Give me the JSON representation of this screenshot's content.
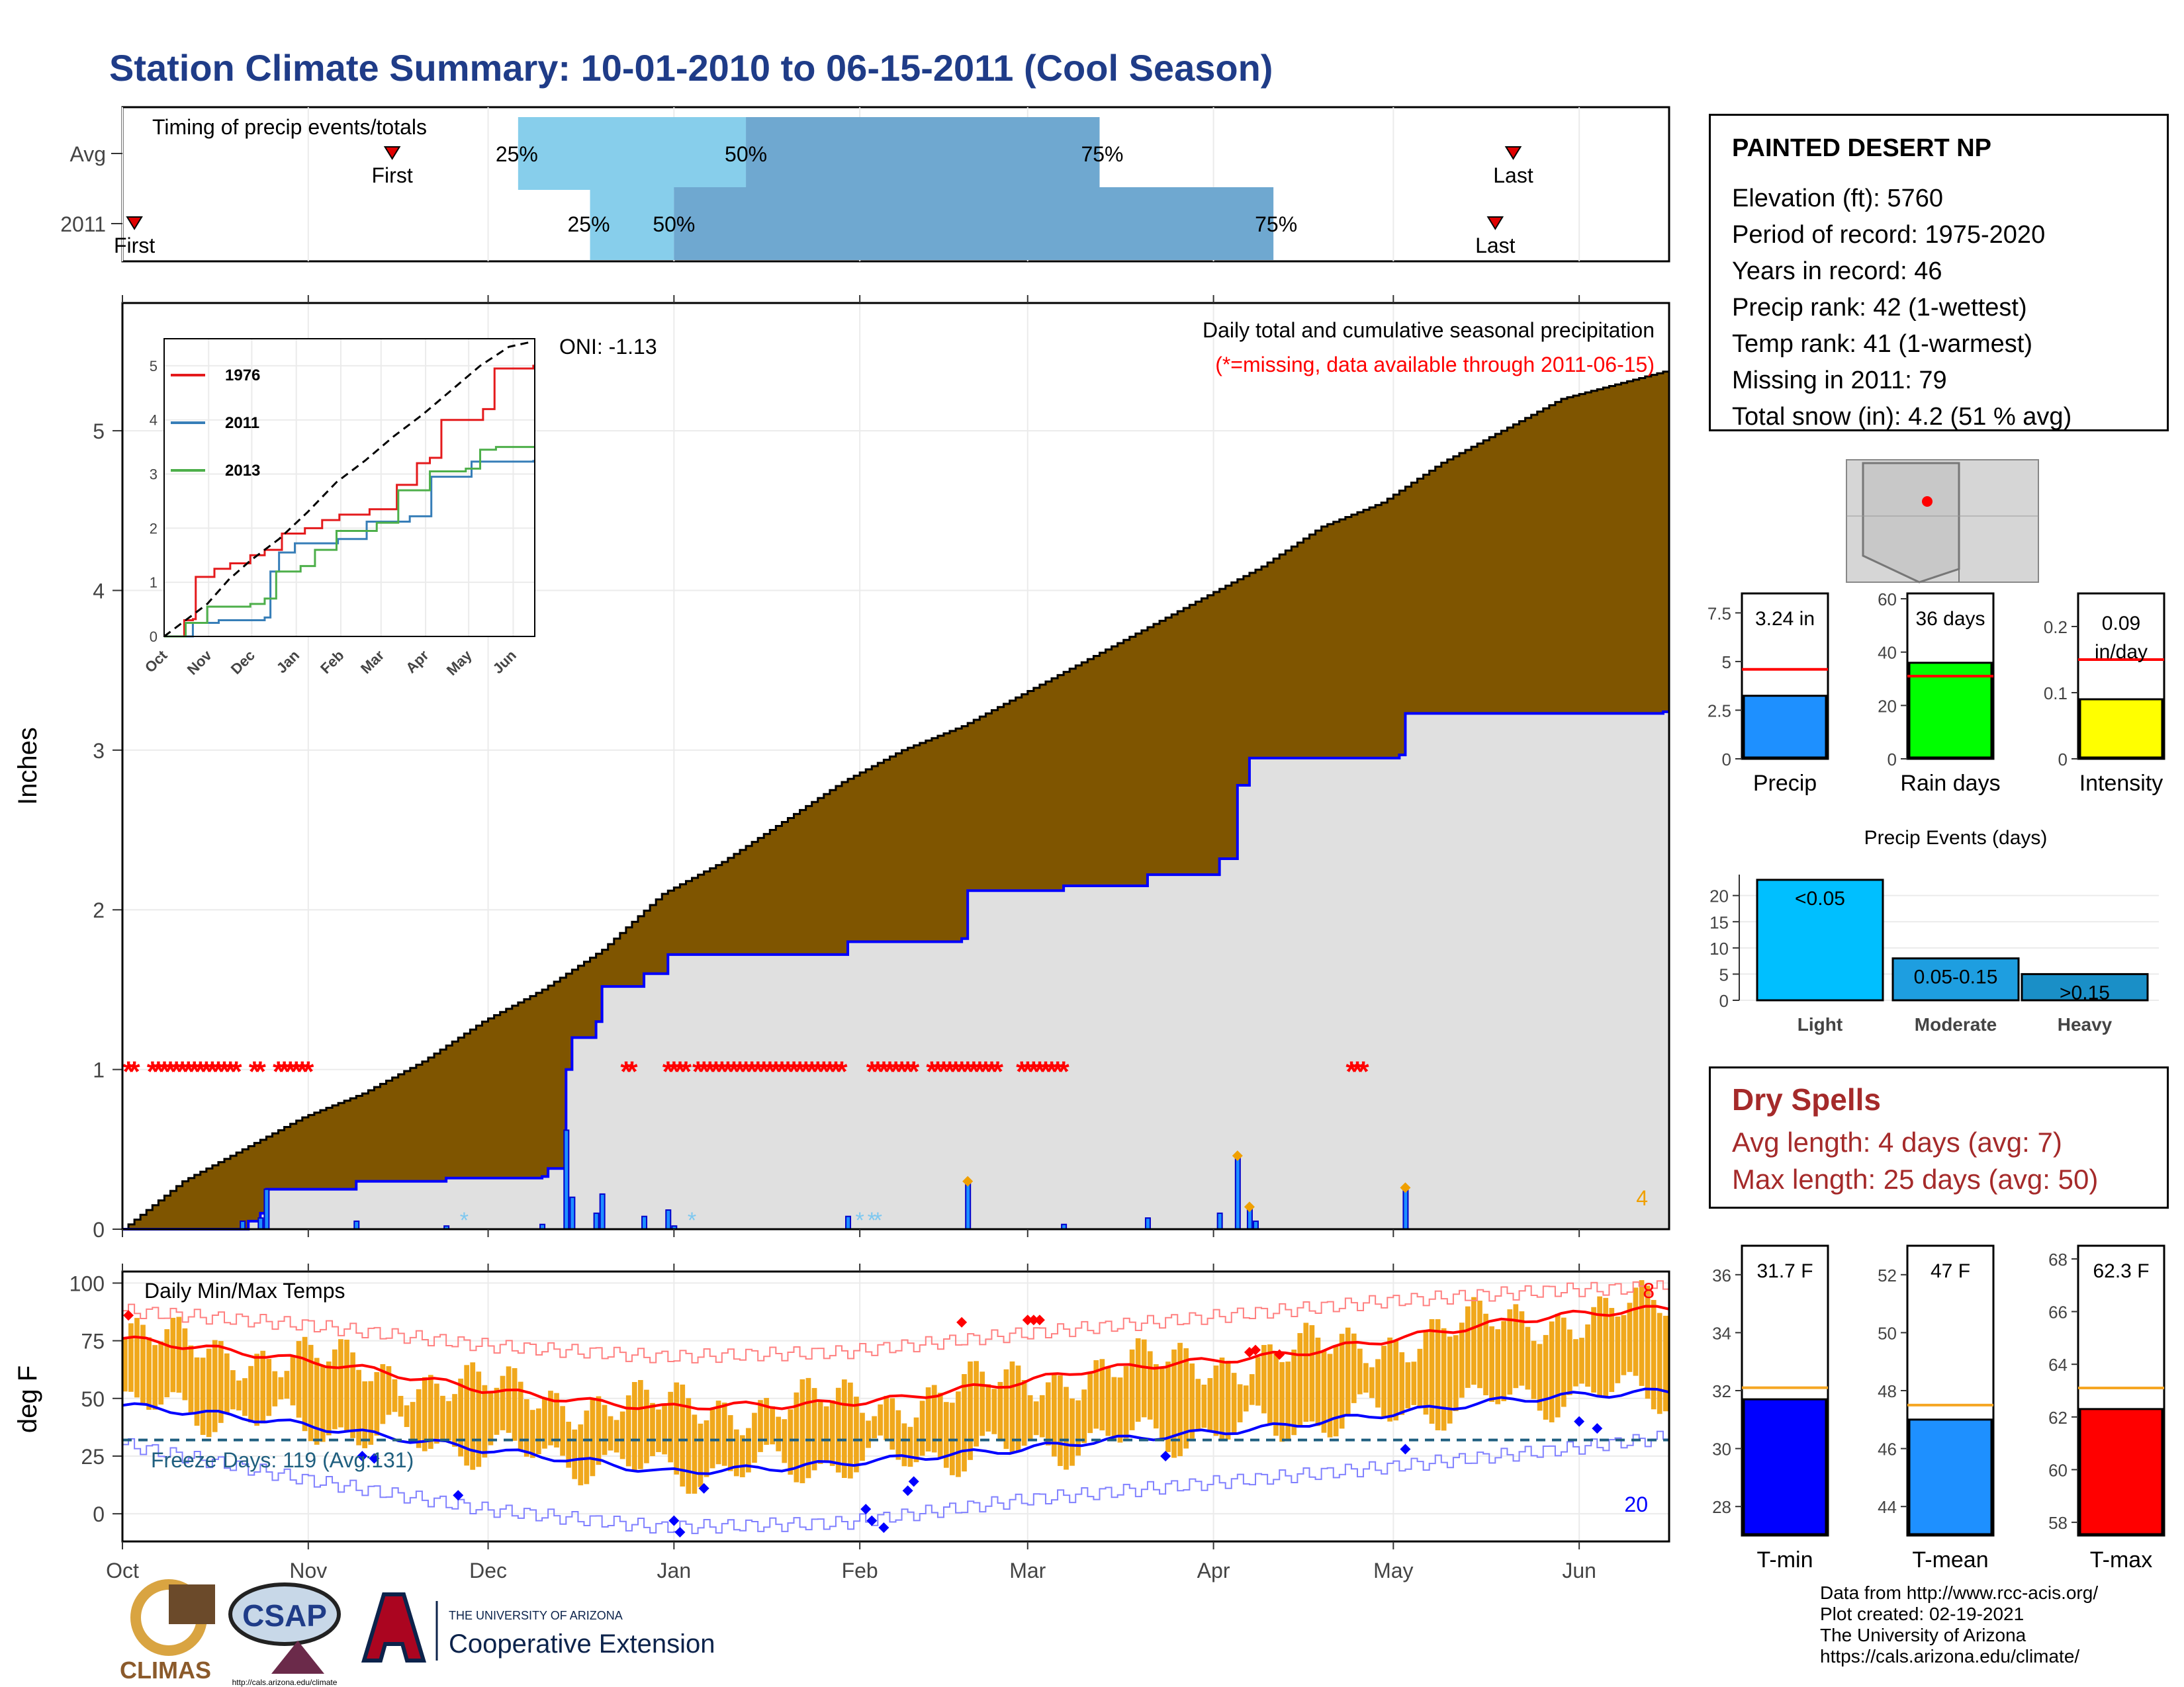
{
  "title": "Station Climate Summary: 10-01-2010 to 06-15-2011 (Cool Season)",
  "station": {
    "name": "PAINTED DESERT NP",
    "elevation": "Elevation (ft): 5760",
    "period": "Period of record: 1975-2020",
    "years": "Years in record: 46",
    "precip_rank": "Precip rank: 42 (1-wettest)",
    "temp_rank": "Temp rank: 41 (1-warmest)",
    "missing": "Missing in 2011: 79",
    "snow": "Total snow (in): 4.2 (51 % avg)"
  },
  "dry_spells": {
    "title": "Dry Spells",
    "avg": "Avg length: 4 days (avg: 7)",
    "max": "Max length: 25 days (avg: 50)"
  },
  "footer": {
    "line1": "Data from http://www.rcc-acis.org/",
    "line2": "Plot created: 02-19-2021",
    "line3": "The University of Arizona",
    "line4": "https://cals.arizona.edu/climate/"
  },
  "logos": {
    "climas": "CLIMAS",
    "csap": "CSAP",
    "csap_url": "http://cals.arizona.edu/climate",
    "ua_small": "THE UNIVERSITY OF ARIZONA",
    "ua_ext": "Cooperative Extension"
  },
  "months": [
    "Oct",
    "Nov",
    "Dec",
    "Jan",
    "Feb",
    "Mar",
    "Apr",
    "May",
    "Jun"
  ],
  "chart_data": [
    {
      "type": "bar",
      "name": "timing",
      "title": "Timing of precip events/totals",
      "rows": [
        {
          "label": "Avg",
          "first_day": 45,
          "last_day": 232,
          "p25_day": 66,
          "p50_day": 104,
          "p75_day": 163,
          "labels": [
            "First",
            "25%",
            "50%",
            "75%",
            "Last"
          ]
        },
        {
          "label": "2011",
          "first_day": 2,
          "last_day": 229,
          "p25_day": 78,
          "p50_day": 92,
          "p75_day": 192,
          "labels": [
            "First",
            "25%",
            "50%",
            "75%",
            "Last"
          ]
        }
      ]
    },
    {
      "type": "area",
      "name": "cumulative_precip",
      "title": "Daily total and cumulative seasonal precipitation",
      "subtitle": "(*=missing, data available through 2011-06-15)",
      "oni": "ONI: -1.13",
      "ylabel": "Inches",
      "ylim": [
        0,
        5.8
      ],
      "yticks": [
        0,
        1,
        2,
        3,
        4,
        5
      ],
      "avg_cum": [
        [
          0,
          0
        ],
        [
          10,
          0.3
        ],
        [
          20,
          0.5
        ],
        [
          30,
          0.7
        ],
        [
          40,
          0.85
        ],
        [
          50,
          1.05
        ],
        [
          60,
          1.3
        ],
        [
          70,
          1.5
        ],
        [
          80,
          1.75
        ],
        [
          90,
          2.1
        ],
        [
          100,
          2.3
        ],
        [
          110,
          2.55
        ],
        [
          120,
          2.8
        ],
        [
          130,
          3.0
        ],
        [
          140,
          3.15
        ],
        [
          150,
          3.35
        ],
        [
          160,
          3.55
        ],
        [
          170,
          3.75
        ],
        [
          180,
          3.95
        ],
        [
          190,
          4.15
        ],
        [
          200,
          4.4
        ],
        [
          210,
          4.55
        ],
        [
          220,
          4.8
        ],
        [
          230,
          5.0
        ],
        [
          240,
          5.2
        ],
        [
          250,
          5.3
        ],
        [
          257,
          5.37
        ]
      ],
      "obs_cum": [
        [
          0,
          0
        ],
        [
          20,
          0
        ],
        [
          21,
          0.05
        ],
        [
          23,
          0.1
        ],
        [
          24,
          0.25
        ],
        [
          38,
          0.25
        ],
        [
          39,
          0.3
        ],
        [
          54,
          0.32
        ],
        [
          70,
          0.33
        ],
        [
          71,
          0.38
        ],
        [
          74,
          1.0
        ],
        [
          75,
          1.2
        ],
        [
          79,
          1.3
        ],
        [
          80,
          1.52
        ],
        [
          87,
          1.6
        ],
        [
          91,
          1.72
        ],
        [
          110,
          1.72
        ],
        [
          121,
          1.8
        ],
        [
          140,
          1.82
        ],
        [
          141,
          2.12
        ],
        [
          157,
          2.15
        ],
        [
          171,
          2.22
        ],
        [
          183,
          2.32
        ],
        [
          186,
          2.78
        ],
        [
          188,
          2.95
        ],
        [
          197,
          2.95
        ],
        [
          213,
          2.97
        ],
        [
          214,
          3.23
        ],
        [
          257,
          3.24
        ]
      ],
      "daily": [
        [
          20,
          0.05
        ],
        [
          23,
          0.07
        ],
        [
          24,
          0.25
        ],
        [
          39,
          0.05
        ],
        [
          54,
          0.02
        ],
        [
          70,
          0.03
        ],
        [
          74,
          0.62
        ],
        [
          75,
          0.2
        ],
        [
          79,
          0.1
        ],
        [
          80,
          0.22
        ],
        [
          87,
          0.08
        ],
        [
          91,
          0.12
        ],
        [
          92,
          0.02
        ],
        [
          121,
          0.08
        ],
        [
          141,
          0.3
        ],
        [
          157,
          0.03
        ],
        [
          171,
          0.07
        ],
        [
          183,
          0.1
        ],
        [
          186,
          0.46
        ],
        [
          188,
          0.14
        ],
        [
          189,
          0.05
        ],
        [
          214,
          0.26
        ]
      ],
      "missing_days": [
        1,
        2,
        5,
        6,
        7,
        8,
        9,
        10,
        11,
        12,
        13,
        14,
        15,
        16,
        17,
        18,
        19,
        22,
        23,
        26,
        27,
        28,
        29,
        30,
        31,
        84,
        85,
        91,
        92,
        93,
        94,
        96,
        97,
        98,
        99,
        100,
        101,
        102,
        103,
        104,
        105,
        106,
        107,
        108,
        109,
        110,
        111,
        112,
        113,
        114,
        115,
        116,
        117,
        118,
        119,
        120,
        125,
        126,
        127,
        128,
        129,
        130,
        131,
        132,
        135,
        136,
        137,
        138,
        139,
        140,
        141,
        142,
        143,
        144,
        145,
        146,
        150,
        151,
        152,
        153,
        154,
        155,
        156,
        157,
        205,
        206,
        207
      ],
      "count_label": "4"
    },
    {
      "type": "line",
      "name": "inset_cumulative",
      "ylim": [
        0,
        5.5
      ],
      "yticks": [
        0,
        1,
        2,
        3,
        4,
        5
      ],
      "series": [
        {
          "name": "1976",
          "color": "#e41a1c",
          "values": [
            [
              14,
              0
            ],
            [
              14,
              0.3
            ],
            [
              20,
              0.32
            ],
            [
              22,
              1.1
            ],
            [
              35,
              1.25
            ],
            [
              46,
              1.35
            ],
            [
              60,
              1.5
            ],
            [
              70,
              1.6
            ],
            [
              82,
              1.9
            ],
            [
              98,
              2.0
            ],
            [
              110,
              2.15
            ],
            [
              122,
              2.25
            ],
            [
              143,
              2.35
            ],
            [
              158,
              2.35
            ],
            [
              162,
              2.8
            ],
            [
              176,
              3.2
            ],
            [
              185,
              3.3
            ],
            [
              193,
              4.0
            ],
            [
              205,
              4.0
            ],
            [
              210,
              4.0
            ],
            [
              222,
              4.2
            ],
            [
              230,
              4.95
            ],
            [
              257,
              5.0
            ]
          ]
        },
        {
          "name": "2011",
          "color": "#377eb8",
          "values": [
            [
              0,
              0
            ],
            [
              20,
              0.25
            ],
            [
              38,
              0.3
            ],
            [
              70,
              0.35
            ],
            [
              74,
              1.2
            ],
            [
              80,
              1.55
            ],
            [
              91,
              1.72
            ],
            [
              121,
              1.8
            ],
            [
              141,
              2.12
            ],
            [
              171,
              2.22
            ],
            [
              186,
              2.95
            ],
            [
              214,
              3.23
            ],
            [
              257,
              3.24
            ]
          ]
        },
        {
          "name": "2013",
          "color": "#4daf4a",
          "values": [
            [
              0,
              0
            ],
            [
              13,
              0
            ],
            [
              15,
              0.25
            ],
            [
              30,
              0.55
            ],
            [
              60,
              0.6
            ],
            [
              70,
              0.7
            ],
            [
              78,
              1.2
            ],
            [
              95,
              1.3
            ],
            [
              105,
              1.6
            ],
            [
              120,
              1.95
            ],
            [
              148,
              2.1
            ],
            [
              163,
              2.7
            ],
            [
              185,
              3.05
            ],
            [
              200,
              3.05
            ],
            [
              210,
              3.1
            ],
            [
              220,
              3.45
            ],
            [
              231,
              3.5
            ],
            [
              257,
              3.5
            ]
          ]
        },
        {
          "name": "",
          "color": "#000000",
          "values": [
            [
              0,
              0
            ],
            [
              15,
              0.3
            ],
            [
              30,
              0.6
            ],
            [
              45,
              1.05
            ],
            [
              60,
              1.4
            ],
            [
              80,
              1.8
            ],
            [
              100,
              2.3
            ],
            [
              120,
              2.85
            ],
            [
              140,
              3.25
            ],
            [
              160,
              3.7
            ],
            [
              180,
              4.1
            ],
            [
              200,
              4.55
            ],
            [
              220,
              5.0
            ],
            [
              240,
              5.35
            ],
            [
              257,
              5.45
            ]
          ]
        }
      ]
    },
    {
      "type": "bar",
      "name": "temps",
      "title": "Daily Min/Max Temps",
      "ylabel": "deg F",
      "ylim": [
        -12,
        105
      ],
      "yticks": [
        0,
        25,
        50,
        75,
        100
      ],
      "freeze_line": 32,
      "freeze_label": "Freeze Days: 119 (Avg:131)",
      "hot_count_label": "8",
      "cold_count_label": "20",
      "avg_max": [
        [
          0,
          76
        ],
        [
          20,
          70
        ],
        [
          40,
          63
        ],
        [
          60,
          54
        ],
        [
          80,
          48
        ],
        [
          90,
          46
        ],
        [
          100,
          47
        ],
        [
          110,
          47
        ],
        [
          120,
          48
        ],
        [
          130,
          50
        ],
        [
          140,
          54
        ],
        [
          150,
          57
        ],
        [
          160,
          62
        ],
        [
          170,
          64
        ],
        [
          180,
          66
        ],
        [
          190,
          68
        ],
        [
          200,
          71
        ],
        [
          210,
          75
        ],
        [
          220,
          79
        ],
        [
          230,
          83
        ],
        [
          240,
          86
        ],
        [
          257,
          89
        ]
      ],
      "avg_min": [
        [
          0,
          47
        ],
        [
          20,
          42
        ],
        [
          40,
          35
        ],
        [
          60,
          28
        ],
        [
          80,
          22
        ],
        [
          90,
          18
        ],
        [
          100,
          19
        ],
        [
          110,
          20
        ],
        [
          120,
          22
        ],
        [
          130,
          24
        ],
        [
          140,
          26
        ],
        [
          150,
          28
        ],
        [
          160,
          31
        ],
        [
          170,
          33
        ],
        [
          180,
          35
        ],
        [
          190,
          37
        ],
        [
          200,
          40
        ],
        [
          210,
          43
        ],
        [
          220,
          46
        ],
        [
          230,
          49
        ],
        [
          240,
          51
        ],
        [
          257,
          53
        ]
      ],
      "rec_max": [
        [
          0,
          88
        ],
        [
          30,
          82
        ],
        [
          60,
          73
        ],
        [
          90,
          68
        ],
        [
          120,
          70
        ],
        [
          150,
          78
        ],
        [
          180,
          85
        ],
        [
          210,
          92
        ],
        [
          240,
          97
        ],
        [
          257,
          98
        ]
      ],
      "rec_min": [
        [
          0,
          30
        ],
        [
          30,
          15
        ],
        [
          60,
          2
        ],
        [
          90,
          -6
        ],
        [
          120,
          -4
        ],
        [
          150,
          6
        ],
        [
          180,
          13
        ],
        [
          210,
          20
        ],
        [
          240,
          28
        ],
        [
          257,
          33
        ]
      ]
    },
    {
      "type": "bar",
      "name": "precip_stats",
      "categories": [
        "Precip",
        "Rain days",
        "Intensity"
      ],
      "values": [
        3.24,
        36,
        0.09
      ],
      "averages": [
        4.6,
        31,
        0.15
      ],
      "value_labels": [
        "3.24 in",
        "36 days",
        "0.09 in/day"
      ],
      "ylims": [
        [
          0,
          8.5
        ],
        [
          0,
          62
        ],
        [
          0,
          0.25
        ]
      ],
      "yticks": [
        [
          0,
          2.5,
          5,
          7.5
        ],
        [
          0,
          20,
          40,
          60
        ],
        [
          0,
          0.1,
          0.2
        ]
      ],
      "colors": [
        "#1e90ff",
        "#00ff00",
        "#ffff00"
      ]
    },
    {
      "type": "bar",
      "name": "precip_events",
      "title": "Precip Events (days)",
      "categories": [
        "Light",
        "Moderate",
        "Heavy"
      ],
      "values": [
        23,
        8,
        5
      ],
      "value_labels": [
        "<0.05",
        "0.05-0.15",
        ">0.15"
      ],
      "ylim": [
        0,
        24
      ],
      "yticks": [
        0,
        5,
        10,
        15,
        20
      ],
      "colors": [
        "#00bfff",
        "#1e9ee0",
        "#1a8fc7"
      ]
    },
    {
      "type": "bar",
      "name": "temp_stats",
      "categories": [
        "T-min",
        "T-mean",
        "T-max"
      ],
      "values": [
        31.7,
        47,
        62.3
      ],
      "averages": [
        32.1,
        47.5,
        63.1
      ],
      "value_labels": [
        "31.7 F",
        "47 F",
        "62.3 F"
      ],
      "ylims": [
        [
          27,
          37
        ],
        [
          43,
          53
        ],
        [
          57.5,
          68.5
        ]
      ],
      "yticks": [
        [
          28,
          30,
          32,
          34,
          36
        ],
        [
          44,
          46,
          48,
          50,
          52
        ],
        [
          58,
          60,
          62,
          64,
          66,
          68
        ]
      ],
      "colors": [
        "#0000ff",
        "#1e90ff",
        "#ff0000"
      ]
    }
  ],
  "colors": {
    "title": "#1f3c88",
    "avg_cum_fill": "#7f5500",
    "obs_cum_fill": "#e0e0e0",
    "obs_line": "#0000ff",
    "missing": "#ff0000",
    "temp_bar": "#f0a81c",
    "dry_spells": "#a52a2a",
    "p_light": "#87ceeb",
    "p_dark": "#6fa8d0"
  }
}
